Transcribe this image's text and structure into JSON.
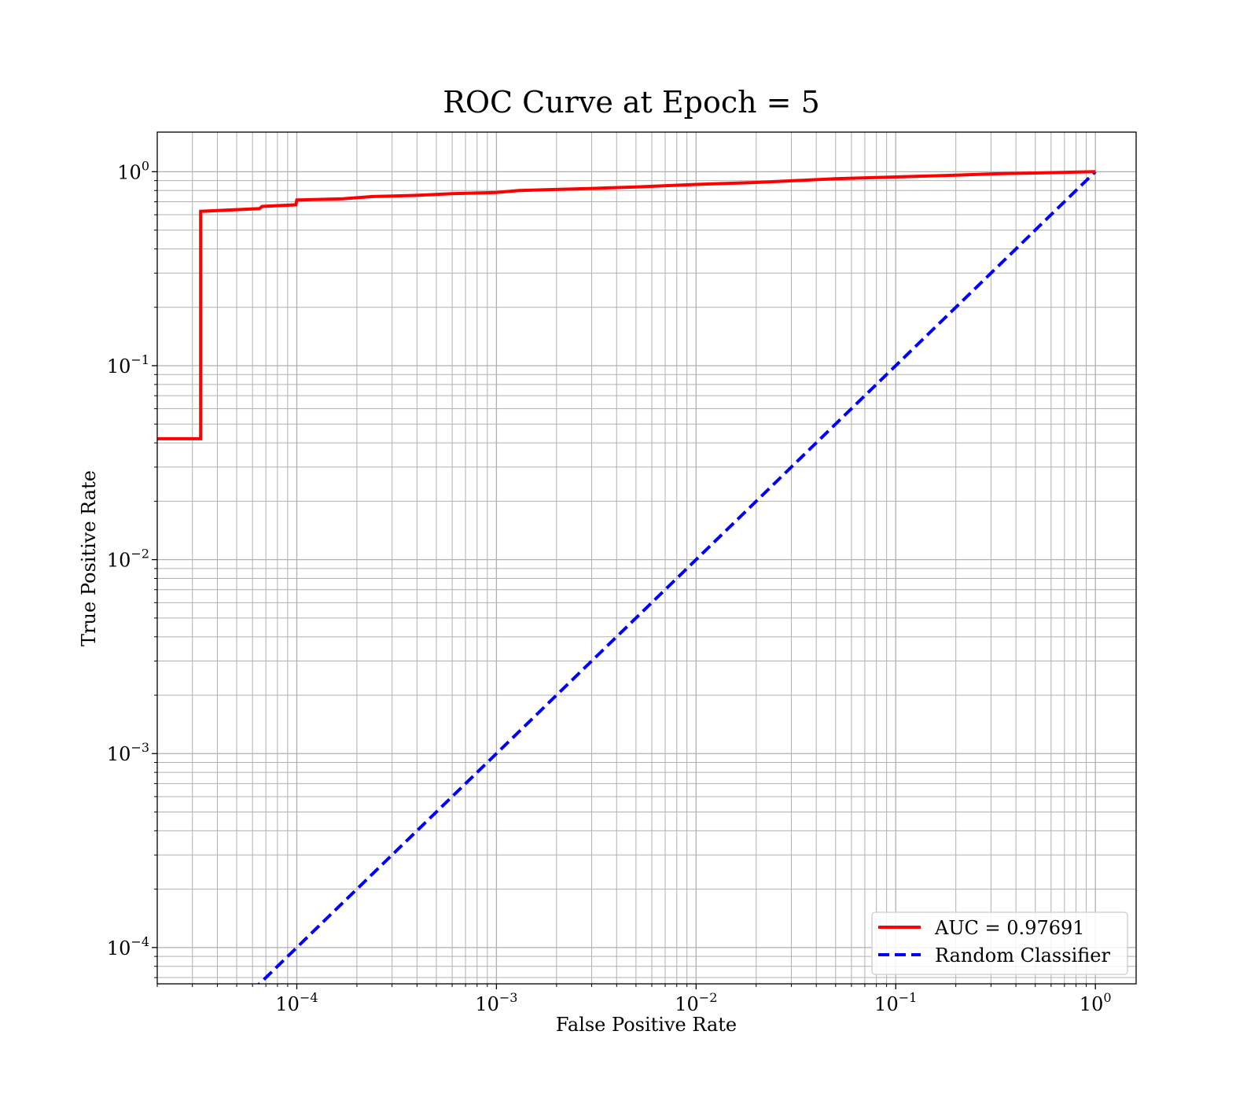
{
  "chart_data": {
    "type": "line",
    "title": "ROC Curve at Epoch = 5",
    "xlabel": "False Positive Rate",
    "ylabel": "True Positive Rate",
    "xscale": "log",
    "yscale": "log",
    "xlim": [
      2e-05,
      1.6
    ],
    "ylim": [
      6.5e-05,
      1.6
    ],
    "grid": "major and minor",
    "legend_position": "lower-right",
    "x_ticks": [
      {
        "value": 0.0001,
        "base": "10",
        "exp": "−4"
      },
      {
        "value": 0.001,
        "base": "10",
        "exp": "−3"
      },
      {
        "value": 0.01,
        "base": "10",
        "exp": "−2"
      },
      {
        "value": 0.1,
        "base": "10",
        "exp": "−1"
      },
      {
        "value": 1,
        "base": "10",
        "exp": "0"
      }
    ],
    "y_ticks": [
      {
        "value": 0.0001,
        "base": "10",
        "exp": "−4"
      },
      {
        "value": 0.001,
        "base": "10",
        "exp": "−3"
      },
      {
        "value": 0.01,
        "base": "10",
        "exp": "−2"
      },
      {
        "value": 0.1,
        "base": "10",
        "exp": "−1"
      },
      {
        "value": 1,
        "base": "10",
        "exp": "0"
      }
    ],
    "series": [
      {
        "name": "AUC = 0.97691",
        "color": "#ff0000",
        "style": "solid",
        "x": [
          2e-05,
          3.3e-05,
          3.3e-05,
          6.5e-05,
          6.7e-05,
          9.9e-05,
          0.0001,
          0.00017,
          0.00024,
          0.0004,
          0.0006,
          0.001,
          0.0013,
          0.002,
          0.003,
          0.005,
          0.01,
          0.02,
          0.05,
          0.1,
          0.2,
          0.3,
          0.5,
          1.0
        ],
        "y": [
          0.042,
          0.042,
          0.625,
          0.645,
          0.662,
          0.675,
          0.715,
          0.725,
          0.745,
          0.755,
          0.77,
          0.782,
          0.8,
          0.81,
          0.82,
          0.835,
          0.86,
          0.88,
          0.92,
          0.94,
          0.96,
          0.975,
          0.985,
          1.0
        ]
      },
      {
        "name": "Random Classifier",
        "color": "#0000ff",
        "style": "dashed",
        "x": [
          2e-05,
          1.0
        ],
        "y": [
          2e-05,
          1.0
        ]
      }
    ]
  }
}
